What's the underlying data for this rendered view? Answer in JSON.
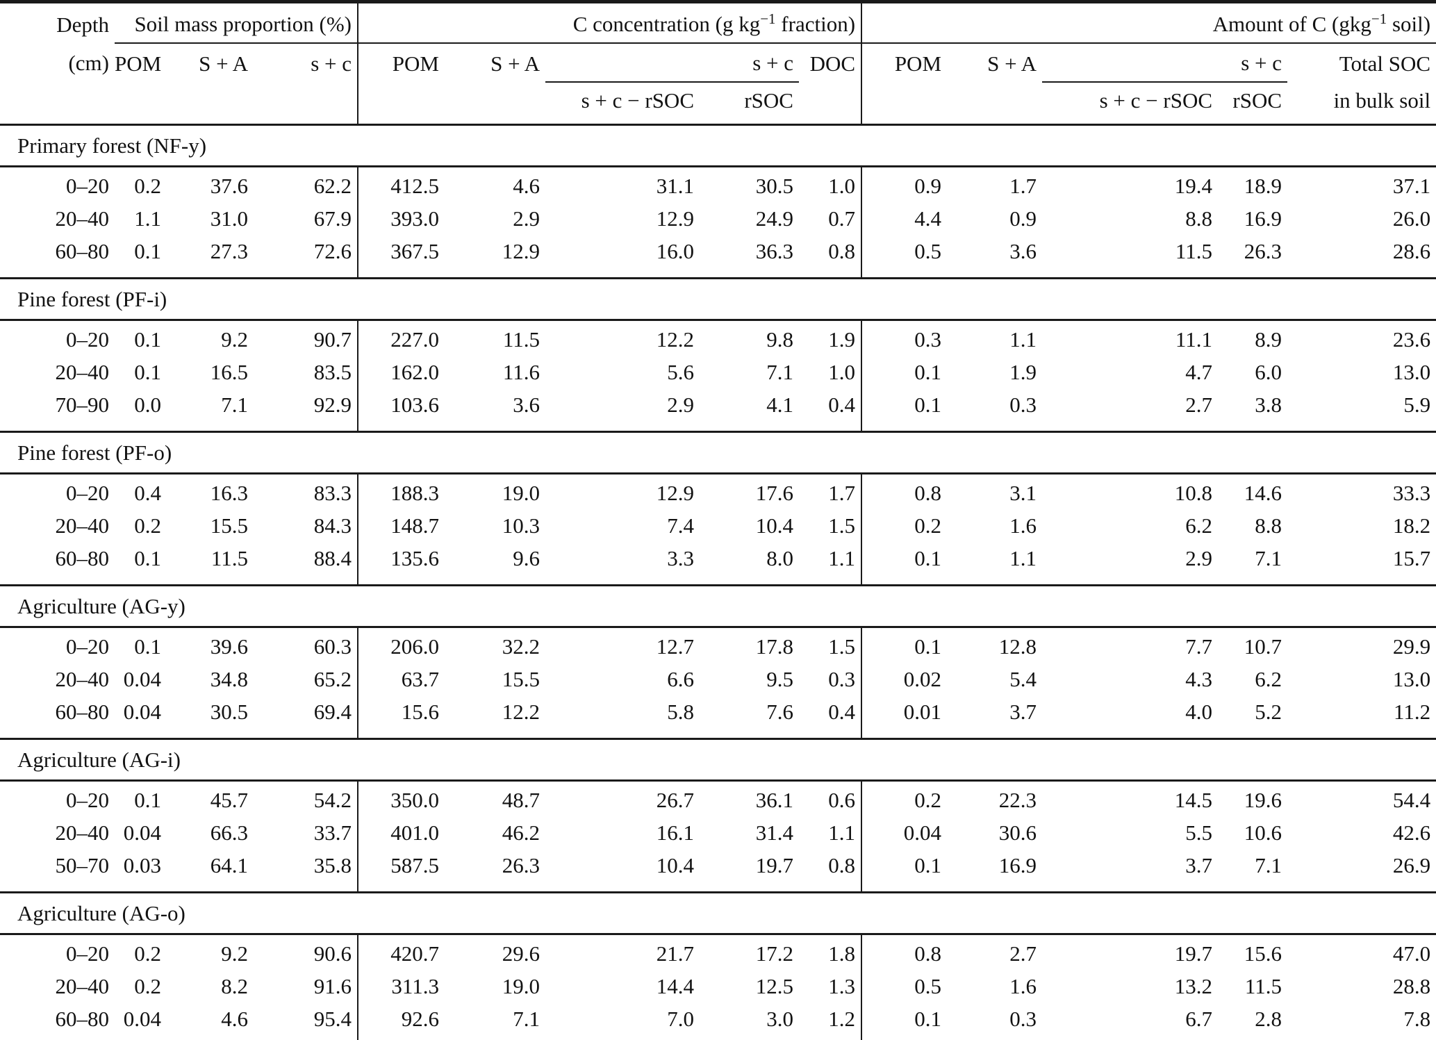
{
  "header": {
    "depth_label": "Depth",
    "depth_unit": "(cm)",
    "group1": "Soil mass proportion (%)",
    "group2": {
      "pre": "C concentration (g kg",
      "sup": "−1",
      "post": " fraction)"
    },
    "group3": {
      "pre": "Amount of C (gkg",
      "sup": "−1",
      "post": " soil)"
    },
    "sub": {
      "pom": "POM",
      "sa": "S + A",
      "sc": "s + c",
      "doc": "DOC",
      "total_soc": "Total SOC",
      "sc_minus_rsoc": "s + c − rSOC",
      "rsoc": "rSOC",
      "in_bulk_soil": "in bulk soil"
    }
  },
  "sections": [
    {
      "title": "Primary forest (NF-y)",
      "rows": [
        {
          "depth": "0–20",
          "values": [
            "0.2",
            "37.6",
            "62.2",
            "412.5",
            "4.6",
            "31.1",
            "30.5",
            "1.0",
            "0.9",
            "1.7",
            "19.4",
            "18.9",
            "37.1"
          ]
        },
        {
          "depth": "20–40",
          "values": [
            "1.1",
            "31.0",
            "67.9",
            "393.0",
            "2.9",
            "12.9",
            "24.9",
            "0.7",
            "4.4",
            "0.9",
            "8.8",
            "16.9",
            "26.0"
          ]
        },
        {
          "depth": "60–80",
          "values": [
            "0.1",
            "27.3",
            "72.6",
            "367.5",
            "12.9",
            "16.0",
            "36.3",
            "0.8",
            "0.5",
            "3.6",
            "11.5",
            "26.3",
            "28.6"
          ]
        }
      ]
    },
    {
      "title": "Pine forest (PF-i)",
      "rows": [
        {
          "depth": "0–20",
          "values": [
            "0.1",
            "9.2",
            "90.7",
            "227.0",
            "11.5",
            "12.2",
            "9.8",
            "1.9",
            "0.3",
            "1.1",
            "11.1",
            "8.9",
            "23.6"
          ]
        },
        {
          "depth": "20–40",
          "values": [
            "0.1",
            "16.5",
            "83.5",
            "162.0",
            "11.6",
            "5.6",
            "7.1",
            "1.0",
            "0.1",
            "1.9",
            "4.7",
            "6.0",
            "13.0"
          ]
        },
        {
          "depth": "70–90",
          "values": [
            "0.0",
            "7.1",
            "92.9",
            "103.6",
            "3.6",
            "2.9",
            "4.1",
            "0.4",
            "0.1",
            "0.3",
            "2.7",
            "3.8",
            "5.9"
          ]
        }
      ]
    },
    {
      "title": "Pine forest (PF-o)",
      "rows": [
        {
          "depth": "0–20",
          "values": [
            "0.4",
            "16.3",
            "83.3",
            "188.3",
            "19.0",
            "12.9",
            "17.6",
            "1.7",
            "0.8",
            "3.1",
            "10.8",
            "14.6",
            "33.3"
          ]
        },
        {
          "depth": "20–40",
          "values": [
            "0.2",
            "15.5",
            "84.3",
            "148.7",
            "10.3",
            "7.4",
            "10.4",
            "1.5",
            "0.2",
            "1.6",
            "6.2",
            "8.8",
            "18.2"
          ]
        },
        {
          "depth": "60–80",
          "values": [
            "0.1",
            "11.5",
            "88.4",
            "135.6",
            "9.6",
            "3.3",
            "8.0",
            "1.1",
            "0.1",
            "1.1",
            "2.9",
            "7.1",
            "15.7"
          ]
        }
      ]
    },
    {
      "title": "Agriculture (AG-y)",
      "rows": [
        {
          "depth": "0–20",
          "values": [
            "0.1",
            "39.6",
            "60.3",
            "206.0",
            "32.2",
            "12.7",
            "17.8",
            "1.5",
            "0.1",
            "12.8",
            "7.7",
            "10.7",
            "29.9"
          ]
        },
        {
          "depth": "20–40",
          "values": [
            "0.04",
            "34.8",
            "65.2",
            "63.7",
            "15.5",
            "6.6",
            "9.5",
            "0.3",
            "0.02",
            "5.4",
            "4.3",
            "6.2",
            "13.0"
          ]
        },
        {
          "depth": "60–80",
          "values": [
            "0.04",
            "30.5",
            "69.4",
            "15.6",
            "12.2",
            "5.8",
            "7.6",
            "0.4",
            "0.01",
            "3.7",
            "4.0",
            "5.2",
            "11.2"
          ]
        }
      ]
    },
    {
      "title": "Agriculture (AG-i)",
      "rows": [
        {
          "depth": "0–20",
          "values": [
            "0.1",
            "45.7",
            "54.2",
            "350.0",
            "48.7",
            "26.7",
            "36.1",
            "0.6",
            "0.2",
            "22.3",
            "14.5",
            "19.6",
            "54.4"
          ]
        },
        {
          "depth": "20–40",
          "values": [
            "0.04",
            "66.3",
            "33.7",
            "401.0",
            "46.2",
            "16.1",
            "31.4",
            "1.1",
            "0.04",
            "30.6",
            "5.5",
            "10.6",
            "42.6"
          ]
        },
        {
          "depth": "50–70",
          "values": [
            "0.03",
            "64.1",
            "35.8",
            "587.5",
            "26.3",
            "10.4",
            "19.7",
            "0.8",
            "0.1",
            "16.9",
            "3.7",
            "7.1",
            "26.9"
          ]
        }
      ]
    },
    {
      "title": "Agriculture (AG-o)",
      "rows": [
        {
          "depth": "0–20",
          "values": [
            "0.2",
            "9.2",
            "90.6",
            "420.7",
            "29.6",
            "21.7",
            "17.2",
            "1.8",
            "0.8",
            "2.7",
            "19.7",
            "15.6",
            "47.0"
          ]
        },
        {
          "depth": "20–40",
          "values": [
            "0.2",
            "8.2",
            "91.6",
            "311.3",
            "19.0",
            "14.4",
            "12.5",
            "1.3",
            "0.5",
            "1.6",
            "13.2",
            "11.5",
            "28.8"
          ]
        },
        {
          "depth": "60–80",
          "values": [
            "0.04",
            "4.6",
            "95.4",
            "92.6",
            "7.1",
            "7.0",
            "3.0",
            "1.2",
            "0.1",
            "0.3",
            "6.7",
            "2.8",
            "7.8"
          ]
        }
      ]
    }
  ]
}
